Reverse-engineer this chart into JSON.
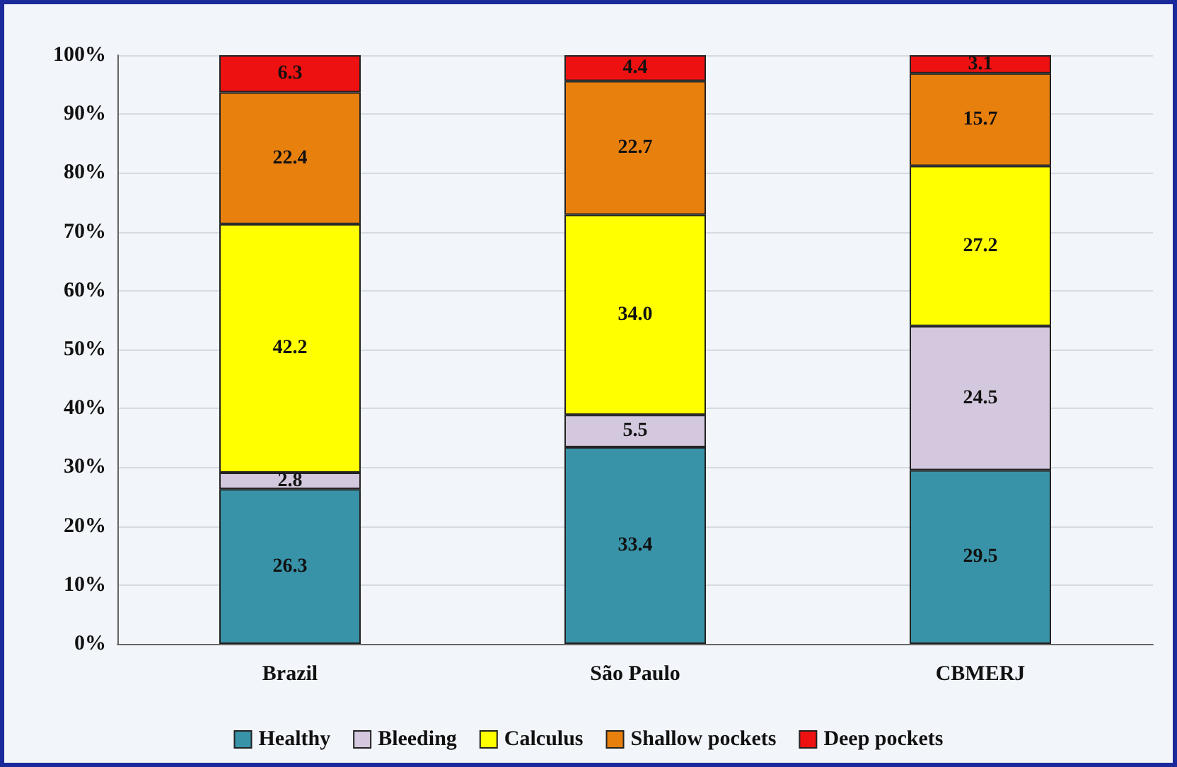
{
  "chart_data": {
    "type": "bar",
    "stacked": true,
    "categories": [
      "Brazil",
      "São Paulo",
      "CBMERJ"
    ],
    "series": [
      {
        "name": "Healthy",
        "color": "#3893a8",
        "values": [
          26.3,
          33.4,
          29.5
        ]
      },
      {
        "name": "Bleeding",
        "color": "#d3c8de",
        "values": [
          2.8,
          5.5,
          24.5
        ]
      },
      {
        "name": "Calculus",
        "color": "#ffff00",
        "values": [
          42.2,
          34.0,
          27.2
        ],
        "value_labels": [
          "42.2",
          "34.0",
          "27.2"
        ]
      },
      {
        "name": "Shallow pockets",
        "color": "#e8800e",
        "values": [
          22.4,
          22.7,
          15.7
        ]
      },
      {
        "name": "Deep pockets",
        "color": "#ee1111",
        "values": [
          6.3,
          4.4,
          3.1
        ]
      }
    ],
    "ylim": [
      0,
      100
    ],
    "yticks": [
      {
        "value": 0,
        "label": "0%"
      },
      {
        "value": 10,
        "label": "10%"
      },
      {
        "value": 20,
        "label": "20%"
      },
      {
        "value": 30,
        "label": "30%"
      },
      {
        "value": 40,
        "label": "40%"
      },
      {
        "value": 50,
        "label": "50%"
      },
      {
        "value": 60,
        "label": "60%"
      },
      {
        "value": 70,
        "label": "70%"
      },
      {
        "value": 80,
        "label": "80%"
      },
      {
        "value": 90,
        "label": "90%"
      },
      {
        "value": 100,
        "label": "100%"
      }
    ],
    "grid": "y",
    "legend": "bottom",
    "data_labels": true
  }
}
